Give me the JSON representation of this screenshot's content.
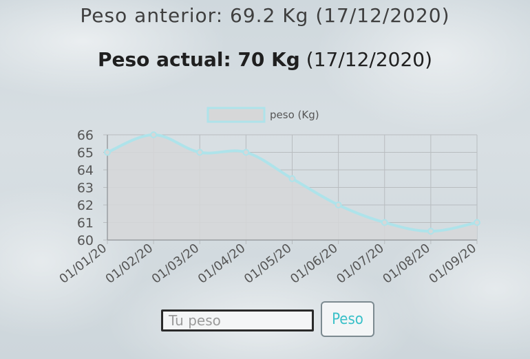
{
  "previous_weight": {
    "text": "Peso anterior: 69.2 Kg (17/12/2020)"
  },
  "current_weight": {
    "label_bold": "Peso actual: 70 Kg",
    "date": "(17/12/2020)"
  },
  "form": {
    "input_placeholder": "Tu peso",
    "input_value": "",
    "button_label": "Peso"
  },
  "colors": {
    "line": "#aee3ea",
    "fill": "#d6d7d8",
    "accent": "#39c0c8"
  },
  "chart_data": {
    "type": "line",
    "title": "",
    "xlabel": "",
    "ylabel": "",
    "categories": [
      "01/01/20",
      "01/02/20",
      "01/03/20",
      "01/04/20",
      "01/05/20",
      "01/06/20",
      "01/07/20",
      "01/08/20",
      "01/09/20"
    ],
    "series": [
      {
        "name": "peso (Kg)",
        "values": [
          65,
          66,
          65,
          65,
          63.5,
          62,
          61,
          60.5,
          61
        ]
      }
    ],
    "ylim": [
      60,
      66
    ],
    "yticks": [
      60,
      61,
      62,
      63,
      64,
      65,
      66
    ],
    "grid": true,
    "legend": "top-center",
    "area_fill": true
  }
}
